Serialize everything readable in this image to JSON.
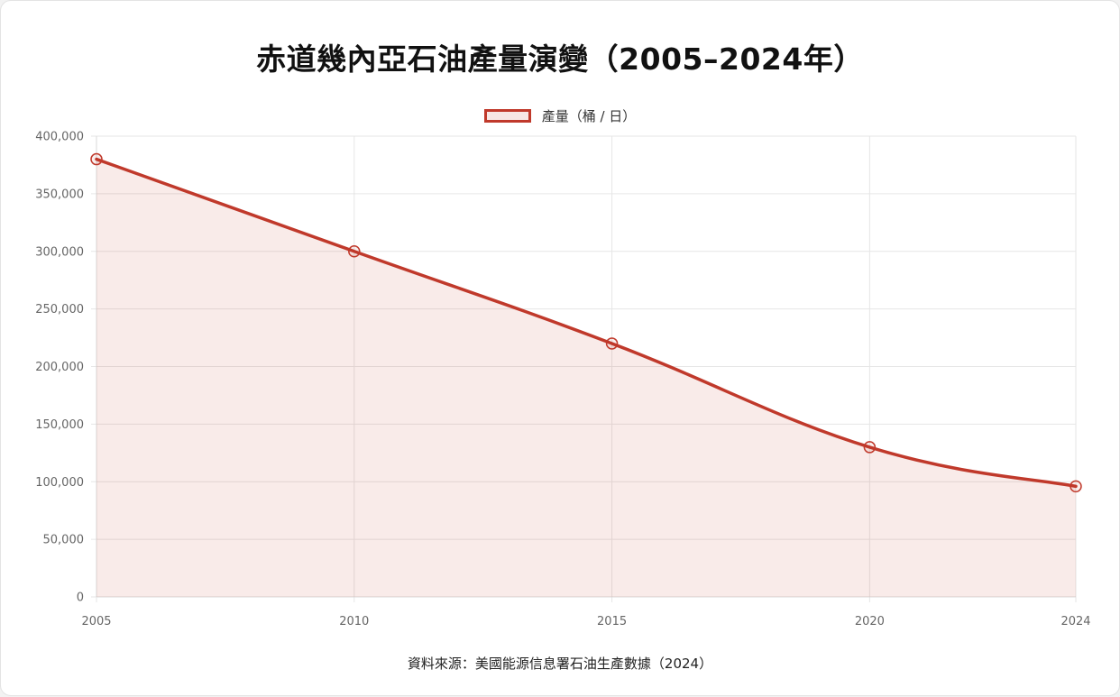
{
  "title": "赤道幾內亞石油產量演變（2005–2024年）",
  "source": "資料來源：美國能源信息署石油生產數據（2024）",
  "colors": {
    "line": "#c0392b",
    "fill": "rgba(192,57,43,0.10)",
    "grid": "#e6e6e6"
  },
  "chart_data": {
    "type": "area",
    "title": "赤道幾內亞石油產量演變（2005–2024年）",
    "x": [
      "2005",
      "2010",
      "2015",
      "2020",
      "2024"
    ],
    "series": [
      {
        "name": "產量（桶 / 日）",
        "values": [
          380000,
          300000,
          220000,
          130000,
          96000
        ]
      }
    ],
    "y_ticks": [
      "0",
      "50,000",
      "100,000",
      "150,000",
      "200,000",
      "250,000",
      "300,000",
      "350,000",
      "400,000"
    ],
    "ylim": [
      0,
      400000
    ],
    "grid": true,
    "legend": "top-center",
    "xlabel": "",
    "ylabel": ""
  }
}
